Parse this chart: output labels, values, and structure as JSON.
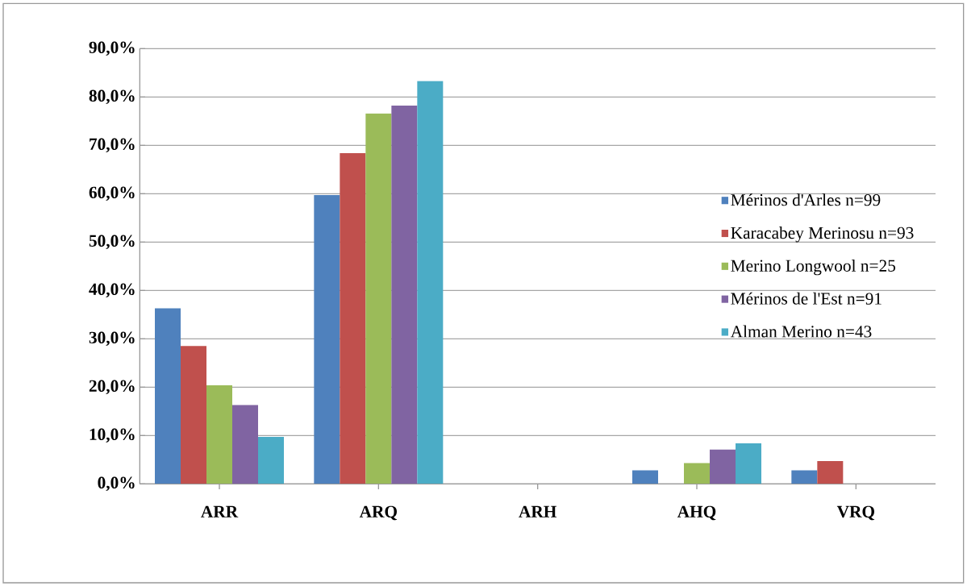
{
  "chart_data": {
    "type": "bar",
    "categories": [
      "ARR",
      "ARQ",
      "ARH",
      "AHQ",
      "VRQ"
    ],
    "series": [
      {
        "name": "Mérinos d'Arles n=99",
        "color": "#4f81bd",
        "values": [
          36.3,
          59.7,
          0,
          2.8,
          2.8
        ]
      },
      {
        "name": "Karacabey Merinosu n=93",
        "color": "#c0504d",
        "values": [
          28.5,
          68.4,
          0,
          0,
          4.7
        ]
      },
      {
        "name": "Merino Longwool n=25",
        "color": "#9bbb59",
        "values": [
          20.4,
          76.6,
          0,
          4.3,
          0
        ]
      },
      {
        "name": "Mérinos de l'Est n=91",
        "color": "#8064a2",
        "values": [
          16.3,
          78.2,
          0,
          7.1,
          0
        ]
      },
      {
        "name": "Alman Merino n=43",
        "color": "#4bacc6",
        "values": [
          9.7,
          83.3,
          0,
          8.4,
          0
        ]
      }
    ],
    "ylim": [
      0,
      90
    ],
    "yticks": [
      {
        "value": 0,
        "label": "0,0%"
      },
      {
        "value": 10,
        "label": "10,0%"
      },
      {
        "value": 20,
        "label": "20,0%"
      },
      {
        "value": 30,
        "label": "30,0%"
      },
      {
        "value": 40,
        "label": "40,0%"
      },
      {
        "value": 50,
        "label": "50,0%"
      },
      {
        "value": 60,
        "label": "60,0%"
      },
      {
        "value": 70,
        "label": "70,0%"
      },
      {
        "value": 80,
        "label": "80,0%"
      },
      {
        "value": 90,
        "label": "90,0%"
      }
    ],
    "grid": "y",
    "legend": "right"
  }
}
